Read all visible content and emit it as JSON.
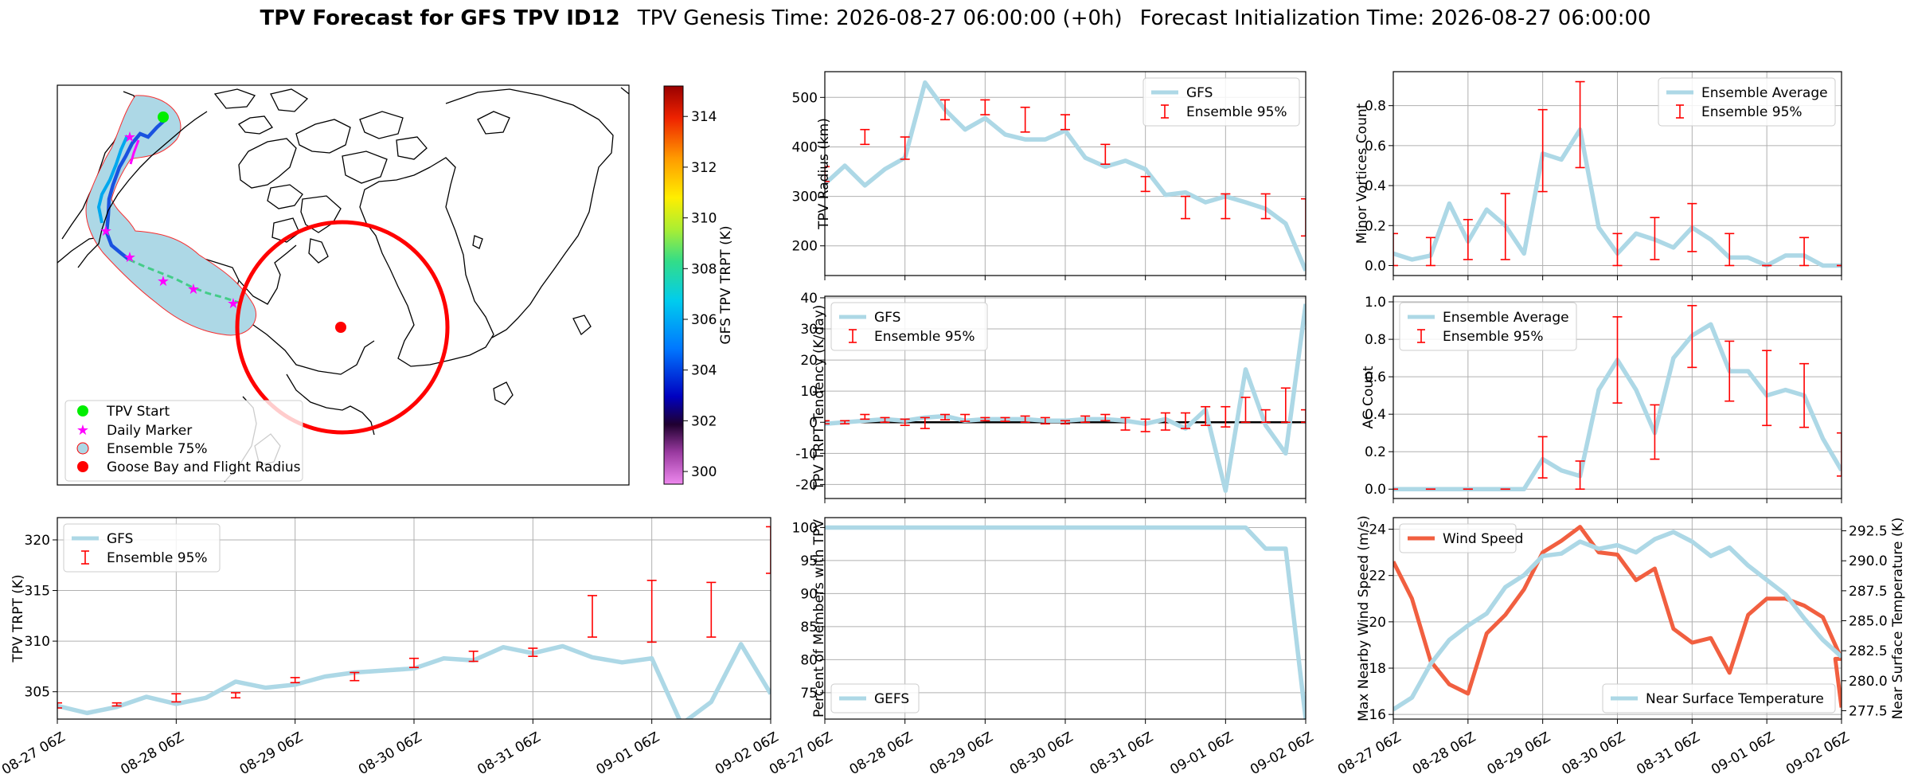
{
  "figure": {
    "title_bold": "TPV Forecast for GFS TPV ID12",
    "title_genesis": "TPV Genesis Time: 2026-08-27 06:00:00 (+0h)",
    "title_init": "Forecast Initialization Time: 2026-08-27 06:00:00"
  },
  "colors": {
    "gfs_line": "#add8e6",
    "ensemble_err": "#ff0000",
    "wind": "#f15f40",
    "temp_axis": "#4169e1",
    "goose_bay": "#ff0000",
    "start": "#00ff00",
    "marker": "#ff00ff"
  },
  "map": {
    "colorbar_label": "GFS TPV TRPT (K)",
    "colorbar_ticks": [
      "300",
      "302",
      "304",
      "306",
      "308",
      "310",
      "312",
      "314"
    ],
    "colorbar_range": [
      299.5,
      315.2
    ],
    "legend": [
      "TPV Start",
      "Daily Marker",
      "Ensemble 75%",
      "Goose Bay and Flight Radius"
    ]
  },
  "xticks": [
    "08-27 06Z",
    "08-28 06Z",
    "08-29 06Z",
    "08-30 06Z",
    "08-31 06Z",
    "09-01 06Z",
    "09-02 06Z"
  ],
  "chart_data": [
    {
      "id": "trpt",
      "type": "line",
      "ylabel": "TPV TRPT (K)",
      "ylim": [
        302.3,
        322.2
      ],
      "yticks": [
        305,
        310,
        315,
        320
      ],
      "x_hours": [
        0,
        6,
        12,
        18,
        24,
        30,
        36,
        42,
        48,
        54,
        60,
        66,
        72,
        78,
        84,
        90,
        96,
        102,
        108,
        114,
        120,
        126,
        132,
        138,
        144
      ],
      "series": [
        {
          "name": "GFS",
          "values": [
            303.6,
            302.9,
            303.5,
            304.5,
            303.8,
            304.4,
            306.0,
            305.4,
            305.7,
            306.5,
            306.9,
            307.1,
            307.3,
            308.3,
            308.1,
            309.4,
            308.8,
            309.5,
            308.4,
            307.9,
            308.3,
            301.8,
            304.0,
            309.7,
            304.8
          ]
        },
        {
          "name": "Ensemble 95%",
          "err_x": [
            0,
            12,
            24,
            36,
            48,
            60,
            72,
            84,
            96,
            108,
            120,
            132,
            144
          ],
          "low": [
            303.4,
            303.6,
            304.0,
            304.4,
            305.9,
            306.1,
            307.4,
            308.0,
            308.5,
            310.4,
            309.9,
            310.4,
            316.7
          ],
          "high": [
            303.9,
            303.9,
            304.8,
            304.9,
            306.4,
            306.9,
            308.3,
            309.0,
            309.3,
            314.5,
            316.0,
            315.8,
            321.3
          ]
        }
      ],
      "legend": "top-left"
    },
    {
      "id": "radius",
      "type": "line",
      "ylabel": "TPV Radius (km)",
      "ylim": [
        140,
        552
      ],
      "yticks": [
        200,
        300,
        400,
        500
      ],
      "x_hours": [
        0,
        6,
        12,
        18,
        24,
        30,
        36,
        42,
        48,
        54,
        60,
        66,
        72,
        78,
        84,
        90,
        96,
        102,
        108,
        114,
        120,
        126,
        132,
        138,
        144
      ],
      "series": [
        {
          "name": "GFS",
          "values": [
            325,
            362,
            322,
            355,
            378,
            530,
            475,
            435,
            458,
            425,
            415,
            415,
            433,
            378,
            360,
            372,
            355,
            303,
            308,
            288,
            300,
            288,
            275,
            245,
            150
          ]
        },
        {
          "name": "Ensemble 95%",
          "err_x": [
            0,
            12,
            24,
            36,
            48,
            60,
            72,
            84,
            96,
            108,
            120,
            132,
            144
          ],
          "low": [
            330,
            405,
            375,
            455,
            465,
            430,
            435,
            365,
            310,
            255,
            255,
            255,
            220
          ],
          "high": [
            360,
            435,
            420,
            495,
            495,
            480,
            465,
            405,
            340,
            300,
            305,
            305,
            295
          ]
        }
      ],
      "legend": "top-right"
    },
    {
      "id": "minor",
      "type": "line",
      "ylabel": "Minor Vortices Count",
      "ylim": [
        -0.05,
        0.97
      ],
      "yticks": [
        0.0,
        0.2,
        0.4,
        0.6,
        0.8
      ],
      "x_hours": [
        0,
        6,
        12,
        18,
        24,
        30,
        36,
        42,
        48,
        54,
        60,
        66,
        72,
        78,
        84,
        90,
        96,
        102,
        108,
        114,
        120,
        126,
        132,
        138,
        144
      ],
      "series": [
        {
          "name": "Ensemble Average",
          "values": [
            0.06,
            0.03,
            0.05,
            0.31,
            0.12,
            0.28,
            0.2,
            0.06,
            0.56,
            0.53,
            0.68,
            0.19,
            0.06,
            0.16,
            0.13,
            0.09,
            0.19,
            0.13,
            0.04,
            0.04,
            0.0,
            0.05,
            0.05,
            0.0,
            0.0
          ]
        },
        {
          "name": "Ensemble 95%",
          "err_x": [
            0,
            12,
            24,
            36,
            48,
            60,
            72,
            84,
            96,
            108,
            120,
            132,
            144
          ],
          "low": [
            0.0,
            0.0,
            0.03,
            0.03,
            0.37,
            0.49,
            0.0,
            0.03,
            0.07,
            0.0,
            0.0,
            0.0,
            0.0
          ],
          "high": [
            0.16,
            0.14,
            0.23,
            0.36,
            0.78,
            0.92,
            0.16,
            0.24,
            0.31,
            0.16,
            0.0,
            0.14,
            0.0
          ]
        }
      ],
      "legend": "top-right"
    },
    {
      "id": "tendency",
      "type": "line",
      "ylabel": "TPV TRPT Tendency (K/day)",
      "ylim": [
        -24.5,
        40.5
      ],
      "yticks": [
        -20,
        -10,
        0,
        10,
        20,
        30,
        40
      ],
      "zero_line": true,
      "x_hours": [
        0,
        6,
        12,
        18,
        24,
        30,
        36,
        42,
        48,
        54,
        60,
        66,
        72,
        78,
        84,
        90,
        96,
        102,
        108,
        114,
        120,
        126,
        132,
        138,
        144
      ],
      "series": [
        {
          "name": "GFS",
          "values": [
            -0.5,
            0.0,
            0.5,
            1.0,
            0.5,
            1.5,
            2.0,
            0.5,
            1.0,
            1.0,
            1.0,
            0.5,
            0.5,
            1.0,
            1.0,
            0.5,
            -0.5,
            1.0,
            -2.0,
            4.0,
            -22.0,
            17.0,
            -1.0,
            -10.0,
            38.0
          ]
        },
        {
          "name": "Ensemble 95%",
          "err_x": [
            0,
            6,
            12,
            18,
            24,
            30,
            36,
            42,
            48,
            54,
            60,
            66,
            72,
            78,
            84,
            90,
            96,
            102,
            108,
            114,
            120,
            126,
            132,
            138,
            144
          ],
          "low": [
            -0.5,
            -0.5,
            1.0,
            0.0,
            -1.0,
            -2.0,
            0.8,
            0.3,
            0.5,
            0.3,
            0.0,
            -0.5,
            -0.5,
            0.0,
            0.5,
            -2.5,
            -3.0,
            -2.5,
            -2.0,
            -1.0,
            -1.5,
            0.0,
            0.0,
            0.0,
            0.0
          ],
          "high": [
            0.5,
            0.5,
            2.5,
            1.5,
            1.0,
            1.5,
            2.5,
            2.5,
            1.5,
            1.5,
            2.0,
            1.5,
            0.5,
            2.0,
            2.5,
            1.5,
            1.0,
            3.0,
            3.0,
            5.0,
            5.0,
            8.0,
            4.0,
            11.0,
            4.0
          ]
        }
      ],
      "legend": "top-left"
    },
    {
      "id": "ac",
      "type": "line",
      "ylabel": "AC Count",
      "ylim": [
        -0.05,
        1.03
      ],
      "yticks": [
        0.0,
        0.2,
        0.4,
        0.6,
        0.8,
        1.0
      ],
      "x_hours": [
        0,
        6,
        12,
        18,
        24,
        30,
        36,
        42,
        48,
        54,
        60,
        66,
        72,
        78,
        84,
        90,
        96,
        102,
        108,
        114,
        120,
        126,
        132,
        138,
        144
      ],
      "series": [
        {
          "name": "Ensemble Average",
          "values": [
            0.0,
            0.0,
            0.0,
            0.0,
            0.0,
            0.0,
            0.0,
            0.0,
            0.16,
            0.1,
            0.07,
            0.53,
            0.69,
            0.53,
            0.3,
            0.7,
            0.82,
            0.88,
            0.63,
            0.63,
            0.5,
            0.53,
            0.5,
            0.27,
            0.1
          ]
        },
        {
          "name": "Ensemble 95%",
          "err_x": [
            0,
            12,
            24,
            36,
            48,
            60,
            72,
            84,
            96,
            108,
            120,
            132,
            144
          ],
          "low": [
            0.0,
            0.0,
            0.0,
            0.0,
            0.06,
            0.0,
            0.46,
            0.16,
            0.65,
            0.47,
            0.34,
            0.33,
            0.07
          ],
          "high": [
            0.0,
            0.0,
            0.0,
            0.0,
            0.28,
            0.15,
            0.92,
            0.45,
            0.98,
            0.79,
            0.74,
            0.67,
            0.3
          ]
        }
      ],
      "legend": "top-left"
    },
    {
      "id": "members",
      "type": "line",
      "ylabel": "Percent of Members with TPV",
      "ylim": [
        71.0,
        101.5
      ],
      "yticks": [
        75,
        80,
        85,
        90,
        95,
        100
      ],
      "x_hours": [
        0,
        6,
        12,
        18,
        24,
        30,
        36,
        42,
        48,
        54,
        60,
        66,
        72,
        78,
        84,
        90,
        96,
        102,
        108,
        114,
        120,
        126,
        132,
        138,
        144
      ],
      "series": [
        {
          "name": "GEFS",
          "values": [
            100,
            100,
            100,
            100,
            100,
            100,
            100,
            100,
            100,
            100,
            100,
            100,
            100,
            100,
            100,
            100,
            100,
            100,
            100,
            100,
            100,
            100,
            96.8,
            96.8,
            71.0
          ]
        }
      ],
      "legend": "bottom-left"
    },
    {
      "id": "wind_temp",
      "type": "line",
      "ylabel": "Max Nearby Wind Speed (m/s)",
      "ylabel_right": "Near Surface Temperature (K)",
      "ylim": [
        15.8,
        24.5
      ],
      "ylim_right": [
        276.8,
        293.6
      ],
      "yticks": [
        16,
        18,
        20,
        22,
        24
      ],
      "yticks_right": [
        "277.5",
        "280.0",
        "282.5",
        "285.0",
        "287.5",
        "290.0",
        "292.5"
      ],
      "x_hours": [
        0,
        6,
        12,
        18,
        24,
        30,
        36,
        42,
        48,
        54,
        60,
        66,
        72,
        78,
        84,
        90,
        96,
        102,
        108,
        114,
        120,
        126,
        132,
        138,
        144
      ],
      "series": [
        {
          "name": "Wind Speed",
          "values": [
            22.6,
            21.0,
            18.3,
            17.3,
            16.9,
            19.5,
            20.3,
            21.4,
            23.0,
            23.5,
            24.1,
            23.0,
            22.9,
            21.8,
            22.3,
            19.7,
            19.1,
            19.3,
            17.8,
            20.3,
            21.0,
            21.0,
            20.7,
            20.2,
            18.4
          ],
          "tail": [
            [
              142,
              18.4
            ],
            [
              144,
              16.3
            ]
          ]
        },
        {
          "name": "Near Surface Temperature",
          "values": [
            277.6,
            278.6,
            281.4,
            283.4,
            284.6,
            285.6,
            287.8,
            288.8,
            290.4,
            290.6,
            291.6,
            291.0,
            291.3,
            290.7,
            291.8,
            292.4,
            291.6,
            290.4,
            291.1,
            289.6,
            288.4,
            287.2,
            285.2,
            283.4,
            282.0
          ]
        }
      ],
      "legend_left": "top-left",
      "legend_right": "bottom-right"
    }
  ]
}
